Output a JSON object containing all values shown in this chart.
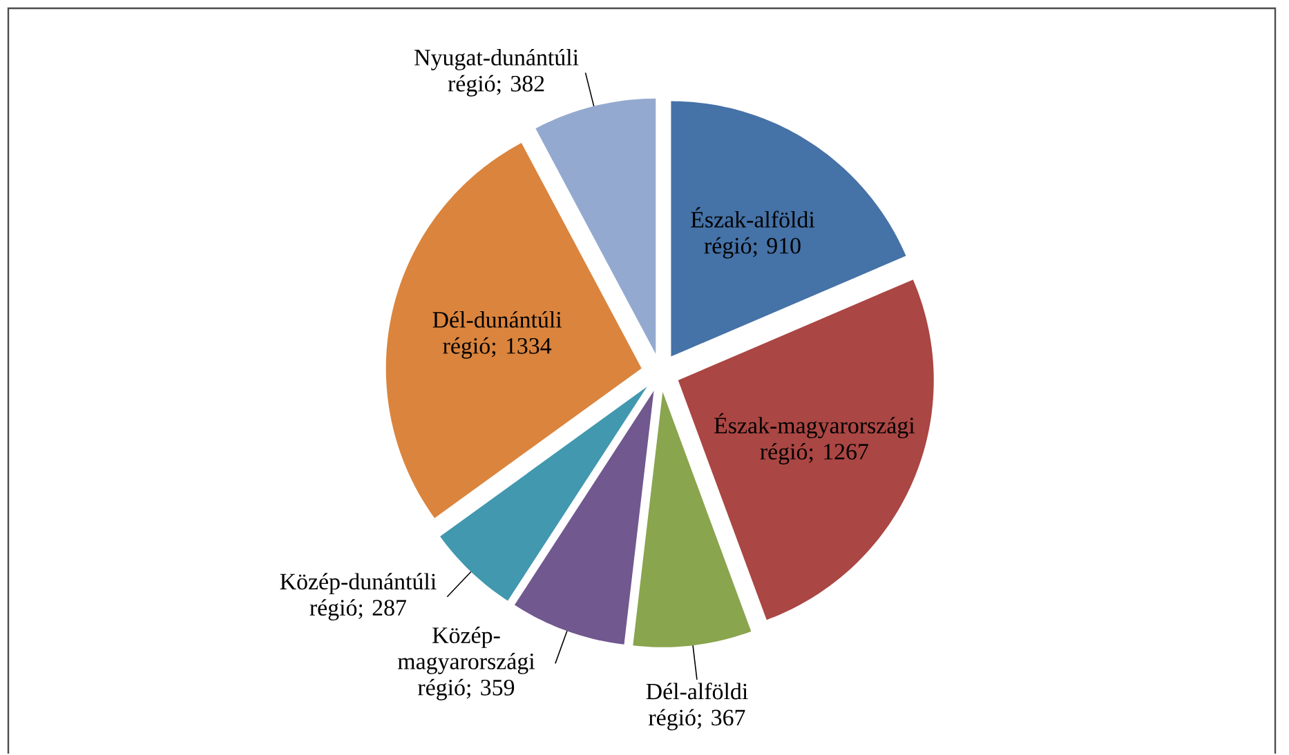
{
  "chart_data": {
    "type": "pie",
    "categories": [
      "Észak-alföldi régió",
      "Észak-magyarországi régió",
      "Dél-alföldi régió",
      "Közép-magyarországi régió",
      "Közép-dunántúli régió",
      "Dél-dunántúli régió",
      "Nyugat-dunántúli régió"
    ],
    "values": [
      910,
      1267,
      367,
      359,
      287,
      1334,
      382
    ],
    "colors": [
      "#4572a7",
      "#aa4643",
      "#89a54e",
      "#71588f",
      "#4198af",
      "#db843d",
      "#93a9cf"
    ],
    "value_labels": [
      "; 910",
      "; 1267",
      "; 367",
      "; 359",
      "; 287",
      "; 1334",
      "; 382"
    ]
  }
}
